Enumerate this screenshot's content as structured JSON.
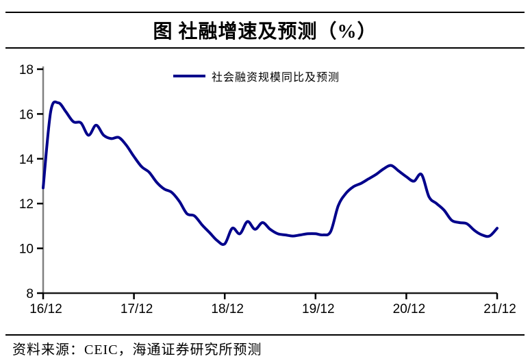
{
  "header": {
    "title": "图 社融增速及预测（%）"
  },
  "legend": {
    "label": "社会融资规模同比及预测"
  },
  "footer": {
    "source": "资料来源：CEIC，海通证券研究所预测"
  },
  "colors": {
    "line": "#00008B",
    "y_axis": "#808080",
    "x_axis": "#1a1a1a",
    "tick": "#000000",
    "text": "#000000"
  },
  "chart_data": {
    "type": "line",
    "title": "图 社融增速及预测（%）",
    "xlabel": "",
    "ylabel": "",
    "ylim": [
      8,
      18
    ],
    "yticks": [
      8,
      10,
      12,
      14,
      16,
      18
    ],
    "x_tick_labels": [
      "16/12",
      "17/12",
      "18/12",
      "19/12",
      "20/12",
      "21/12"
    ],
    "x_months_total": 60,
    "x_tick_month_positions": [
      0,
      12,
      24,
      36,
      48,
      60
    ],
    "grid": false,
    "legend_position": "top-center",
    "series": [
      {
        "name": "社会融资规模同比及预测",
        "color": "#00008B",
        "start_label": "16/12",
        "end_label": "21/12",
        "values": [
          12.7,
          16.1,
          16.5,
          16.1,
          15.65,
          15.6,
          15.05,
          15.5,
          15.05,
          14.9,
          14.95,
          14.6,
          14.1,
          13.65,
          13.4,
          12.95,
          12.65,
          12.5,
          12.1,
          11.55,
          11.45,
          11.05,
          10.7,
          10.35,
          10.2,
          10.9,
          10.65,
          11.2,
          10.85,
          11.15,
          10.85,
          10.65,
          10.6,
          10.55,
          10.6,
          10.65,
          10.65,
          10.6,
          10.75,
          11.9,
          12.45,
          12.75,
          12.9,
          13.1,
          13.3,
          13.55,
          13.7,
          13.45,
          13.2,
          13.0,
          13.3,
          12.3,
          12.0,
          11.7,
          11.25,
          11.15,
          11.1,
          10.8,
          10.6,
          10.55,
          10.9
        ]
      }
    ]
  }
}
